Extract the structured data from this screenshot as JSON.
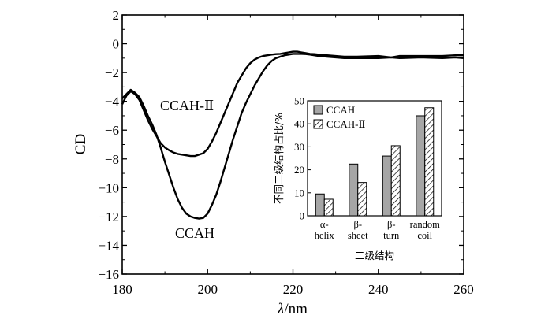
{
  "chart_data": [
    {
      "type": "line",
      "xlabel_symbol": "λ",
      "xlabel_unit": "/nm",
      "ylabel": "CD",
      "xlim": [
        180,
        260
      ],
      "ylim": [
        -16,
        2
      ],
      "xticks": [
        180,
        200,
        220,
        240,
        260
      ],
      "yticks": [
        2,
        0,
        -2,
        -4,
        -6,
        -8,
        -10,
        -12,
        -14,
        -16
      ],
      "series": [
        {
          "name": "CCAH",
          "x": [
            180,
            181,
            182,
            183,
            184,
            185,
            186,
            187,
            188,
            189,
            190,
            191,
            192,
            193,
            194,
            195,
            196,
            197,
            198,
            199,
            200,
            201,
            202,
            203,
            204,
            205,
            206,
            207,
            208,
            209,
            210,
            211,
            212,
            213,
            214,
            215,
            216,
            217,
            218,
            219,
            220,
            221,
            222,
            223,
            224,
            225,
            226,
            228,
            230,
            232,
            235,
            240,
            243,
            245,
            250,
            255,
            258,
            260
          ],
          "y": [
            -3.8,
            -3.5,
            -3.2,
            -3.4,
            -3.7,
            -4.3,
            -5.0,
            -5.6,
            -6.3,
            -7.2,
            -8.2,
            -9.1,
            -10.0,
            -10.8,
            -11.4,
            -11.8,
            -12.0,
            -12.1,
            -12.15,
            -12.1,
            -11.8,
            -11.2,
            -10.5,
            -9.6,
            -8.6,
            -7.6,
            -6.6,
            -5.7,
            -4.8,
            -4.1,
            -3.5,
            -2.9,
            -2.4,
            -1.9,
            -1.5,
            -1.2,
            -1.0,
            -0.9,
            -0.8,
            -0.75,
            -0.7,
            -0.7,
            -0.7,
            -0.72,
            -0.75,
            -0.8,
            -0.85,
            -0.9,
            -0.95,
            -1.0,
            -1.0,
            -1.0,
            -0.95,
            -1.0,
            -0.95,
            -1.0,
            -0.95,
            -1.0
          ]
        },
        {
          "name": "CCAH-Ⅱ",
          "x": [
            180,
            181,
            182,
            183,
            184,
            185,
            186,
            187,
            188,
            189,
            190,
            191,
            192,
            193,
            194,
            195,
            196,
            197,
            198,
            199,
            200,
            201,
            202,
            203,
            204,
            205,
            206,
            207,
            208,
            209,
            210,
            211,
            212,
            213,
            214,
            215,
            216,
            217,
            218,
            219,
            220,
            221,
            222,
            223,
            224,
            225,
            226,
            228,
            230,
            232,
            235,
            240,
            243,
            245,
            250,
            255,
            258,
            260
          ],
          "y": [
            -4.2,
            -3.6,
            -3.3,
            -3.5,
            -3.9,
            -4.6,
            -5.3,
            -5.9,
            -6.4,
            -6.9,
            -7.2,
            -7.4,
            -7.55,
            -7.65,
            -7.7,
            -7.75,
            -7.8,
            -7.8,
            -7.7,
            -7.6,
            -7.3,
            -6.8,
            -6.2,
            -5.5,
            -4.8,
            -4.1,
            -3.4,
            -2.7,
            -2.2,
            -1.7,
            -1.35,
            -1.1,
            -0.95,
            -0.85,
            -0.8,
            -0.75,
            -0.72,
            -0.7,
            -0.65,
            -0.6,
            -0.55,
            -0.55,
            -0.6,
            -0.65,
            -0.7,
            -0.72,
            -0.75,
            -0.8,
            -0.85,
            -0.9,
            -0.9,
            -0.85,
            -0.95,
            -0.85,
            -0.85,
            -0.85,
            -0.8,
            -0.8
          ]
        }
      ],
      "curve_labels": [
        "CCAH-Ⅱ",
        "CCAH"
      ]
    },
    {
      "type": "bar",
      "ylabel": "不同二级结构占比/%",
      "xlabel": "二级结构",
      "ylim": [
        0,
        50
      ],
      "yticks": [
        0,
        10,
        20,
        30,
        40,
        50
      ],
      "categories": [
        {
          "line1": "α-",
          "line2": "helix"
        },
        {
          "line1": "β-",
          "line2": "sheet"
        },
        {
          "line1": "β-",
          "line2": "turn"
        },
        {
          "line1": "random",
          "line2": "coil"
        }
      ],
      "series": [
        {
          "name": "CCAH",
          "values": [
            9.5,
            22.5,
            26,
            43.5
          ],
          "fill": "#a6a6a6",
          "pattern": "solid"
        },
        {
          "name": "CCAH-Ⅱ",
          "values": [
            7.2,
            14.5,
            30.5,
            47
          ],
          "fill": "#ffffff",
          "pattern": "hatch"
        }
      ],
      "legend_placement": "top-left"
    }
  ]
}
